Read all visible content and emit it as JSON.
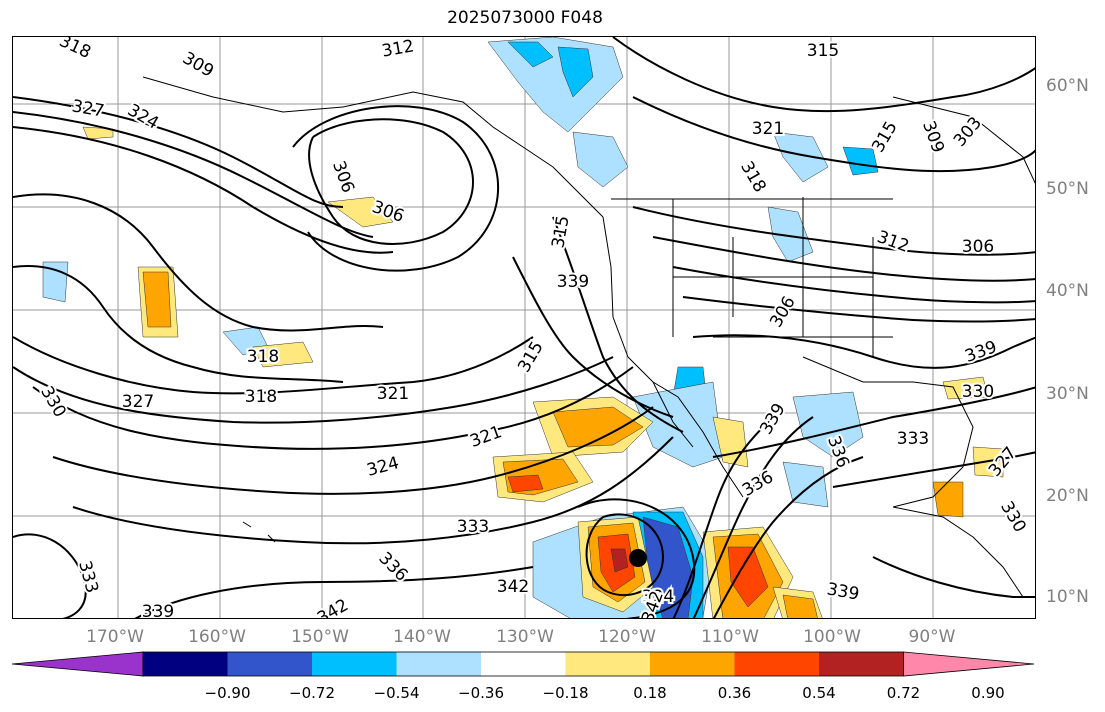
{
  "title": "2025073000 F048",
  "lat_labels": [
    "60°N",
    "50°N",
    "40°N",
    "30°N",
    "20°N",
    "10°N"
  ],
  "lon_labels": [
    "170°W",
    "160°W",
    "150°W",
    "140°W",
    "130°W",
    "120°W",
    "110°W",
    "100°W",
    "90°W"
  ],
  "colorbar": {
    "ticks": [
      "−0.90",
      "−0.72",
      "−0.54",
      "−0.36",
      "−0.18",
      "0.18",
      "0.36",
      "0.54",
      "0.72",
      "0.90"
    ],
    "colors": [
      "#9933cc",
      "#000080",
      "#3355cc",
      "#00bfff",
      "#aee0ff",
      "#ffffff",
      "#ffe97f",
      "#ffa500",
      "#ff4500",
      "#b22222",
      "#ff88aa"
    ]
  },
  "contour_labels": [
    {
      "text": "312"
    },
    {
      "text": "315"
    },
    {
      "text": "309"
    },
    {
      "text": "318"
    },
    {
      "text": "327"
    },
    {
      "text": "324"
    },
    {
      "text": "321"
    },
    {
      "text": "315"
    },
    {
      "text": "306"
    },
    {
      "text": "306"
    },
    {
      "text": "309"
    },
    {
      "text": "318"
    },
    {
      "text": "315"
    },
    {
      "text": "303"
    },
    {
      "text": "306"
    },
    {
      "text": "312"
    },
    {
      "text": "306"
    },
    {
      "text": "339"
    },
    {
      "text": "318"
    },
    {
      "text": "315"
    },
    {
      "text": "318"
    },
    {
      "text": "327"
    },
    {
      "text": "321"
    },
    {
      "text": "330"
    },
    {
      "text": "321"
    },
    {
      "text": "324"
    },
    {
      "text": "333"
    },
    {
      "text": "333"
    },
    {
      "text": "336"
    },
    {
      "text": "336"
    },
    {
      "text": "339"
    },
    {
      "text": "342"
    },
    {
      "text": "336"
    },
    {
      "text": "339"
    },
    {
      "text": "342"
    },
    {
      "text": "324"
    },
    {
      "text": "339"
    },
    {
      "text": "330"
    },
    {
      "text": "327"
    },
    {
      "text": "330"
    },
    {
      "text": "339"
    },
    {
      "text": "333"
    },
    {
      "text": "342"
    }
  ]
}
